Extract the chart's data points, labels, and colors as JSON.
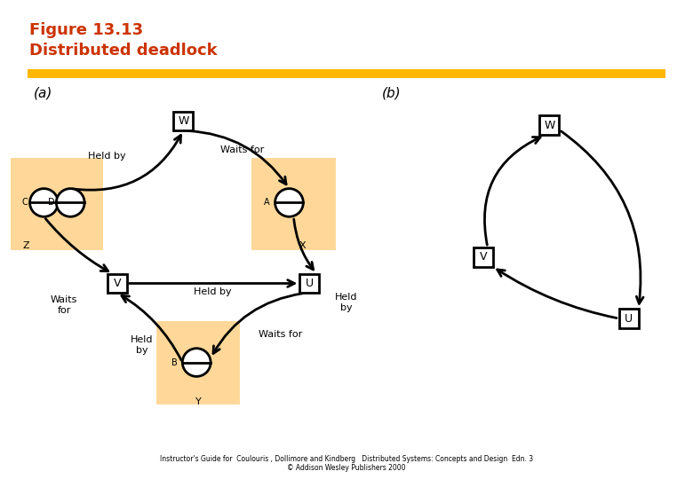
{
  "title_line1": "Figure 13.13",
  "title_line2": "Distributed deadlock",
  "title_color": "#CC3300",
  "gold_bar_color": "#FFB800",
  "bg_color": "#FFFFFF",
  "label_a": "(a)",
  "label_b": "(b)",
  "orange_box_color": "#FFD899",
  "footer1": "Instructor's Guide for  Coulouris , Dollimore and Kindberg   Distributed Systems: Concepts and Design  Edn. 3",
  "footer2": "© Addison Wesley Publishers 2000"
}
